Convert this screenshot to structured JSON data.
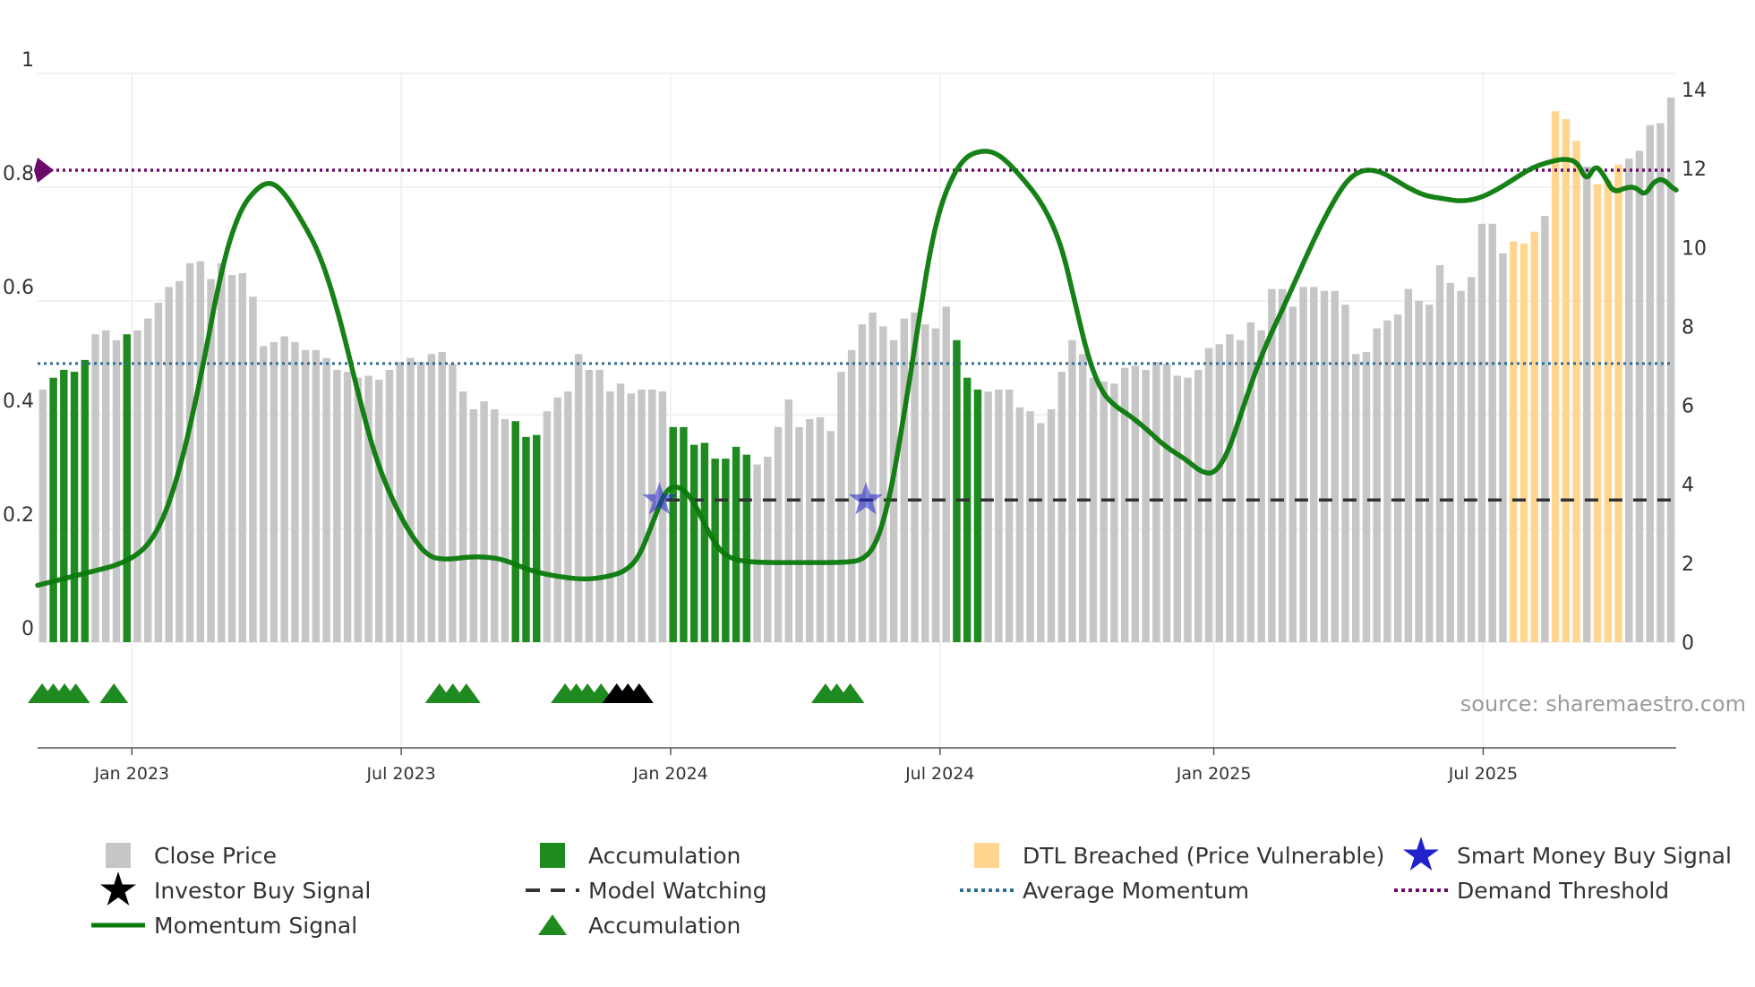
{
  "chart_data": {
    "type": "bar",
    "source_label": "source: sharemaestro.com",
    "colors": {
      "close_price": "#c6c6c6",
      "accumulation": "#1f8a1f",
      "dtl_breached": "#ffd590",
      "momentum": "#0a7a0a",
      "average_momentum": "#2e6e96",
      "demand_threshold": "#6b0a6b",
      "model_watching": "#333333",
      "smart_money": "#2222cc",
      "investor_buy": "#000000",
      "grid": "#ebebeb"
    },
    "left_axis": {
      "range": [
        0,
        1
      ],
      "ticks": [
        0,
        0.2,
        0.4,
        0.6,
        0.8,
        1
      ],
      "tick_labels": [
        "0",
        "0.2",
        "0.4",
        "0.6",
        "0.8",
        "1"
      ]
    },
    "right_axis": {
      "range": [
        0,
        14
      ],
      "ticks": [
        0,
        2,
        4,
        6,
        8,
        10,
        12,
        14
      ],
      "tick_labels": [
        "0",
        "2",
        "4",
        "6",
        "8",
        "10",
        "12",
        "14"
      ]
    },
    "x_axis": {
      "start_month_index": 0,
      "end_month_index": 36.5,
      "ticks": [
        {
          "month_index": 2.1,
          "label": "Jan 2023"
        },
        {
          "month_index": 8.1,
          "label": "Jul 2023"
        },
        {
          "month_index": 14.1,
          "label": "Jan 2024"
        },
        {
          "month_index": 20.1,
          "label": "Jul 2024"
        },
        {
          "month_index": 26.2,
          "label": "Jan 2025"
        },
        {
          "month_index": 32.2,
          "label": "Jul 2025"
        }
      ]
    },
    "close_price": [
      6.4,
      6.7,
      6.9,
      6.85,
      7.15,
      7.8,
      7.9,
      7.65,
      7.8,
      7.9,
      8.2,
      8.6,
      9.0,
      9.15,
      9.6,
      9.65,
      9.2,
      9.6,
      9.3,
      9.35,
      8.75,
      7.5,
      7.6,
      7.75,
      7.6,
      7.4,
      7.4,
      7.2,
      6.9,
      6.85,
      6.7,
      6.75,
      6.65,
      6.9,
      7.1,
      7.2,
      7.1,
      7.3,
      7.35,
      7.05,
      6.35,
      5.9,
      6.1,
      5.9,
      5.65,
      5.6,
      5.2,
      5.25,
      5.85,
      6.2,
      6.35,
      7.3,
      6.9,
      6.9,
      6.35,
      6.55,
      6.3,
      6.4,
      6.4,
      6.35,
      5.45,
      5.45,
      5.0,
      5.05,
      4.65,
      4.65,
      4.95,
      4.75,
      4.5,
      4.7,
      5.45,
      6.15,
      5.45,
      5.65,
      5.7,
      5.35,
      6.85,
      7.4,
      8.05,
      8.35,
      8.0,
      7.65,
      8.2,
      8.35,
      8.05,
      7.95,
      8.5,
      7.65,
      6.7,
      6.4,
      6.35,
      6.4,
      6.4,
      5.95,
      5.85,
      5.55,
      5.9,
      6.85,
      7.65,
      7.3,
      6.7,
      6.6,
      6.55,
      6.95,
      7.0,
      6.9,
      7.1,
      7.05,
      6.75,
      6.7,
      6.9,
      7.45,
      7.55,
      7.8,
      7.65,
      8.1,
      7.9,
      8.95,
      8.95,
      8.5,
      9.0,
      9.0,
      8.9,
      8.9,
      8.55,
      7.3,
      7.35,
      7.95,
      8.15,
      8.3,
      8.95,
      8.65,
      8.55,
      9.55,
      9.1,
      8.9,
      9.25,
      10.6,
      10.6,
      9.85,
      10.15,
      10.1,
      10.4,
      10.8,
      13.45,
      13.25,
      12.7,
      12.05,
      11.6,
      11.7,
      12.1,
      12.25,
      12.45,
      13.1,
      13.15,
      13.8
    ],
    "accumulation_indices": [
      1,
      2,
      3,
      4,
      8,
      45,
      46,
      47,
      60,
      61,
      62,
      63,
      64,
      65,
      66,
      67,
      87,
      88,
      89
    ],
    "dtl_breached_indices": [
      140,
      141,
      142,
      144,
      145,
      146,
      148,
      149,
      150
    ],
    "momentum": [
      [
        0,
        0.1
      ],
      [
        1,
        0.12
      ],
      [
        2,
        0.14
      ],
      [
        2.6,
        0.18
      ],
      [
        3.1,
        0.28
      ],
      [
        3.6,
        0.45
      ],
      [
        4.1,
        0.66
      ],
      [
        4.5,
        0.76
      ],
      [
        4.9,
        0.8
      ],
      [
        5.2,
        0.81
      ],
      [
        5.5,
        0.79
      ],
      [
        5.9,
        0.74
      ],
      [
        6.3,
        0.68
      ],
      [
        6.7,
        0.58
      ],
      [
        7.1,
        0.45
      ],
      [
        7.5,
        0.33
      ],
      [
        7.9,
        0.25
      ],
      [
        8.3,
        0.19
      ],
      [
        8.7,
        0.15
      ],
      [
        9.1,
        0.145
      ],
      [
        9.6,
        0.15
      ],
      [
        10.0,
        0.15
      ],
      [
        10.4,
        0.145
      ],
      [
        11.0,
        0.125
      ],
      [
        11.6,
        0.115
      ],
      [
        12.2,
        0.11
      ],
      [
        12.7,
        0.115
      ],
      [
        13.1,
        0.125
      ],
      [
        13.4,
        0.15
      ],
      [
        13.7,
        0.21
      ],
      [
        14.0,
        0.27
      ],
      [
        14.3,
        0.275
      ],
      [
        14.6,
        0.25
      ],
      [
        14.9,
        0.2
      ],
      [
        15.2,
        0.16
      ],
      [
        15.5,
        0.145
      ],
      [
        16,
        0.14
      ],
      [
        17,
        0.14
      ],
      [
        18,
        0.14
      ],
      [
        18.4,
        0.145
      ],
      [
        18.7,
        0.175
      ],
      [
        19.0,
        0.26
      ],
      [
        19.3,
        0.4
      ],
      [
        19.6,
        0.55
      ],
      [
        19.9,
        0.7
      ],
      [
        20.2,
        0.79
      ],
      [
        20.6,
        0.85
      ],
      [
        21.0,
        0.865
      ],
      [
        21.4,
        0.86
      ],
      [
        21.9,
        0.82
      ],
      [
        22.4,
        0.77
      ],
      [
        22.8,
        0.7
      ],
      [
        23.1,
        0.6
      ],
      [
        23.4,
        0.5
      ],
      [
        23.7,
        0.44
      ],
      [
        24.0,
        0.415
      ],
      [
        24.3,
        0.4
      ],
      [
        24.7,
        0.375
      ],
      [
        25.1,
        0.345
      ],
      [
        25.6,
        0.32
      ],
      [
        25.9,
        0.3
      ],
      [
        26.2,
        0.295
      ],
      [
        26.5,
        0.33
      ],
      [
        26.8,
        0.4
      ],
      [
        27.1,
        0.47
      ],
      [
        27.4,
        0.53
      ],
      [
        27.7,
        0.58
      ],
      [
        28.1,
        0.65
      ],
      [
        28.5,
        0.72
      ],
      [
        28.9,
        0.78
      ],
      [
        29.2,
        0.815
      ],
      [
        29.5,
        0.83
      ],
      [
        29.8,
        0.83
      ],
      [
        30.1,
        0.82
      ],
      [
        30.5,
        0.8
      ],
      [
        30.9,
        0.785
      ],
      [
        31.3,
        0.78
      ],
      [
        31.7,
        0.775
      ],
      [
        32.1,
        0.78
      ],
      [
        32.5,
        0.795
      ],
      [
        32.9,
        0.815
      ],
      [
        33.3,
        0.835
      ],
      [
        33.7,
        0.845
      ],
      [
        34.0,
        0.85
      ],
      [
        34.3,
        0.845
      ],
      [
        34.5,
        0.81
      ],
      [
        34.7,
        0.84
      ],
      [
        34.9,
        0.82
      ],
      [
        35.1,
        0.79
      ],
      [
        35.4,
        0.8
      ],
      [
        35.6,
        0.8
      ],
      [
        35.8,
        0.785
      ],
      [
        36.0,
        0.81
      ],
      [
        36.2,
        0.815
      ],
      [
        36.4,
        0.8
      ],
      [
        36.5,
        0.795
      ]
    ],
    "average_momentum": 0.49,
    "demand_threshold": 0.83,
    "model_watching": {
      "value": 0.25,
      "from_month_index": 14.0,
      "to_month_index": 36.5
    },
    "smart_money_signals": [
      {
        "month_index": 13.85,
        "value": 0.25
      },
      {
        "month_index": 18.45,
        "value": 0.25
      }
    ],
    "accumulation_triangles": [
      0.1,
      0.35,
      0.6,
      0.85,
      1.7,
      8.95,
      9.25,
      9.55,
      11.75,
      12.0,
      12.25,
      12.55
    ],
    "investor_buy_triangles": [
      12.9,
      13.15,
      13.4
    ],
    "accumulation_triangles_late": [
      17.55,
      17.8,
      18.1
    ],
    "legend": [
      {
        "label": "Close Price",
        "marker": "square",
        "color_key": "close_price"
      },
      {
        "label": "Accumulation",
        "marker": "square",
        "color_key": "accumulation"
      },
      {
        "label": "DTL Breached (Price Vulnerable)",
        "marker": "square",
        "color_key": "dtl_breached"
      },
      {
        "label": "Smart Money Buy Signal",
        "marker": "star",
        "color_key": "smart_money"
      },
      {
        "label": "Investor Buy Signal",
        "marker": "star",
        "color_key": "investor_buy"
      },
      {
        "label": "Model Watching",
        "marker": "dash",
        "color_key": "model_watching"
      },
      {
        "label": "Average Momentum",
        "marker": "dot",
        "color_key": "average_momentum"
      },
      {
        "label": "Demand Threshold",
        "marker": "dot",
        "color_key": "demand_threshold"
      },
      {
        "label": "Momentum Signal",
        "marker": "line",
        "color_key": "momentum"
      },
      {
        "label": "Accumulation",
        "marker": "triangle",
        "color_key": "accumulation"
      }
    ]
  }
}
